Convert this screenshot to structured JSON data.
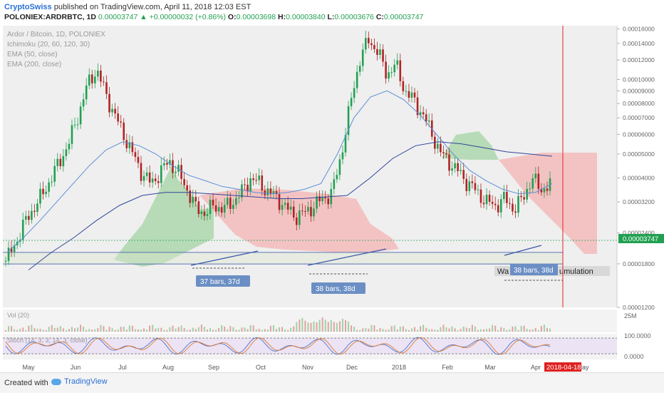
{
  "header": {
    "author": "CryptoSwiss",
    "published": "published on TradingView.com, April 11, 2018 12:03 EST",
    "symbol": "POLONIEX:ARDRBTC, 1D",
    "last": "0.00003747",
    "change": "▲ +0.00000032 (+0.86%)",
    "o_label": "O:",
    "o_val": "0.00003698",
    "h_label": "H:",
    "h_val": "0.00003840",
    "l_label": "L:",
    "l_val": "0.00003676",
    "c_label": "C:",
    "c_val": "0.00003747"
  },
  "legend": {
    "title": "Ardor / Bitcoin, 1D, POLONIEX",
    "ichimoku": "Ichimoku (20, 60, 120, 30)",
    "ema50": "EMA (50, close)",
    "ema200": "EMA (200, close)"
  },
  "annotations": {
    "box1": "37 bars, 37d",
    "box2": "38 bars, 38d",
    "box3": "38 bars, 38d",
    "wait_text": "Wa",
    "wait_text2": "umulation",
    "date_tag": "2018-04-18"
  },
  "volume": {
    "label": "Vol (20)",
    "scale": "25M"
  },
  "stoch": {
    "label": "Stoch (14, 3, 3, 14, 3, close)",
    "scale_top": "100.0000",
    "scale_bottom": "0.0000"
  },
  "price_tag": "0.00003747",
  "footer": {
    "made": "Created with",
    "tv": "TradingView"
  },
  "colors": {
    "up": "#22a052",
    "down": "#b02424",
    "ema50": "#5b8fd6",
    "ema200": "#31459a",
    "cloud_green": "#a8d6a8",
    "cloud_red": "#f4b8b8",
    "accent": "#2a6fd6",
    "marker": "#e02020"
  },
  "chart_data": {
    "type": "candlestick",
    "y_axis_labels": [
      "0.00016000",
      "0.00014000",
      "0.00012000",
      "0.00010000",
      "0.00009000",
      "0.00008000",
      "0.00007000",
      "0.00006000",
      "0.00005000",
      "0.00004000",
      "0.00003200",
      "0.00002400",
      "0.00001800",
      "0.00001200"
    ],
    "y_scale": "log",
    "x_axis_labels": [
      "May",
      "Jun",
      "Jul",
      "Aug",
      "Sep",
      "Oct",
      "Nov",
      "Dec",
      "2018",
      "Feb",
      "Mar",
      "Apr",
      "May"
    ],
    "close_series": [
      1.85e-05,
      2.15e-05,
      2.6e-05,
      3e-05,
      3.4e-05,
      4e-05,
      4.7e-05,
      5.6e-05,
      7.2e-05,
      9.5e-05,
      0.00011,
      8.8e-05,
      7.2e-05,
      6e-05,
      5e-05,
      4.2e-05,
      3.8e-05,
      4.2e-05,
      4.7e-05,
      4.2e-05,
      3.6e-05,
      3e-05,
      2.9e-05,
      3.1e-05,
      3e-05,
      3.2e-05,
      3.5e-05,
      4e-05,
      3.8e-05,
      3.5e-05,
      3.3e-05,
      3e-05,
      2.8e-05,
      2.9e-05,
      3.1e-05,
      3.3e-05,
      3.5e-05,
      5e-05,
      8e-05,
      0.00012,
      0.000145,
      0.00013,
      0.000105,
      0.000115,
      9e-05,
      8.2e-05,
      7.2e-05,
      6e-05,
      5e-05,
      4.6e-05,
      4.2e-05,
      3.8e-05,
      3.5e-05,
      3.2e-05,
      3.1e-05,
      3.3e-05,
      3e-05,
      3.3e-05,
      4e-05,
      3.6e-05,
      3.75e-05
    ],
    "ema50": [
      2e-05,
      2.3e-05,
      2.7e-05,
      3.2e-05,
      3.8e-05,
      4.5e-05,
      5.2e-05,
      5.6e-05,
      5.4e-05,
      5e-05,
      4.5e-05,
      4.1e-05,
      3.9e-05,
      3.7e-05,
      3.6e-05,
      3.5e-05,
      3.45e-05,
      3.5e-05,
      3.6e-05,
      3.8e-05,
      5e-05,
      7e-05,
      8.5e-05,
      9e-05,
      8.3e-05,
      7.2e-05,
      6e-05,
      5e-05,
      4.3e-05,
      3.9e-05,
      3.6e-05,
      3.45e-05,
      3.5e-05,
      3.8e-05
    ],
    "ema200": [
      1.7e-05,
      2e-05,
      2.3e-05,
      2.7e-05,
      3.1e-05,
      3.4e-05,
      3.5e-05,
      3.5e-05,
      3.45e-05,
      3.4e-05,
      3.35e-05,
      3.3e-05,
      3.3e-05,
      3.35e-05,
      3.4e-05,
      4e-05,
      4.8e-05,
      5.4e-05,
      5.6e-05,
      5.5e-05,
      5.3e-05,
      5.1e-05,
      5e-05,
      4.9e-05
    ],
    "last_price": 3.747e-05
  }
}
